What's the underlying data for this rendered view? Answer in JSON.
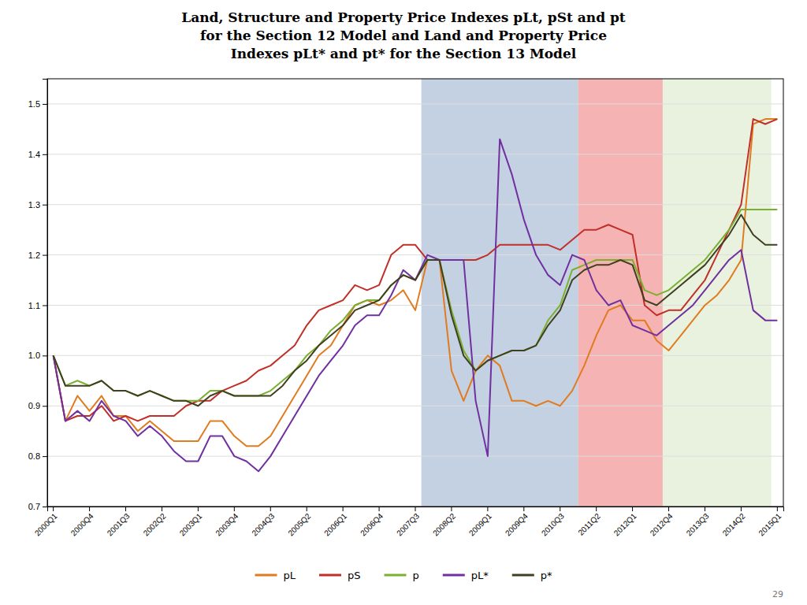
{
  "chart_data": {
    "type": "line",
    "title": "Land, Structure and Property Price Indexes pLt, pSt and pt\nfor the Section 12 Model and Land and Property Price\nIndexes pLt* and pt* for the Section 13 Model",
    "categories": [
      "2000Q1",
      null,
      null,
      "2000Q4",
      null,
      null,
      "2001Q3",
      null,
      null,
      "2002Q2",
      null,
      null,
      "2003Q1",
      null,
      null,
      "2003Q4",
      null,
      null,
      "2004Q3",
      null,
      null,
      "2005Q2",
      null,
      null,
      "2006Q1",
      null,
      null,
      "2006Q4",
      null,
      null,
      "2007Q3",
      null,
      null,
      "2008Q2",
      null,
      null,
      "2009Q1",
      null,
      null,
      "2009Q4",
      null,
      null,
      "2010Q3",
      null,
      null,
      "2011Q2",
      null,
      null,
      "2012Q1",
      null,
      null,
      "2012Q4",
      null,
      null,
      "2013Q3",
      null,
      null,
      "2014Q2",
      null,
      null,
      "2015Q1"
    ],
    "series": [
      {
        "name": "pL",
        "color": "#e07b20",
        "values": [
          1.0,
          0.87,
          0.92,
          0.89,
          0.92,
          0.88,
          0.88,
          0.85,
          0.87,
          0.85,
          0.83,
          0.83,
          0.83,
          0.87,
          0.87,
          0.84,
          0.82,
          0.82,
          0.84,
          0.88,
          0.92,
          0.96,
          1.0,
          1.02,
          1.06,
          1.1,
          1.11,
          1.1,
          1.11,
          1.13,
          1.09,
          1.19,
          1.19,
          0.97,
          0.91,
          0.97,
          1.0,
          0.98,
          0.91,
          0.91,
          0.9,
          0.91,
          0.9,
          0.93,
          0.98,
          1.04,
          1.09,
          1.1,
          1.07,
          1.07,
          1.03,
          1.01,
          1.04,
          1.07,
          1.1,
          1.12,
          1.15,
          1.19,
          1.46,
          1.47,
          1.47
        ]
      },
      {
        "name": "pS",
        "color": "#c03028",
        "values": [
          1.0,
          0.87,
          0.88,
          0.88,
          0.9,
          0.87,
          0.88,
          0.87,
          0.88,
          0.88,
          0.88,
          0.9,
          0.91,
          0.91,
          0.93,
          0.94,
          0.95,
          0.97,
          0.98,
          1.0,
          1.02,
          1.06,
          1.09,
          1.1,
          1.11,
          1.14,
          1.13,
          1.14,
          1.2,
          1.22,
          1.22,
          1.19,
          1.19,
          1.19,
          1.19,
          1.19,
          1.2,
          1.22,
          1.22,
          1.22,
          1.22,
          1.22,
          1.21,
          1.23,
          1.25,
          1.25,
          1.26,
          1.25,
          1.24,
          1.1,
          1.08,
          1.09,
          1.09,
          1.12,
          1.15,
          1.2,
          1.25,
          1.3,
          1.47,
          1.46,
          1.47
        ]
      },
      {
        "name": "p",
        "color": "#7ab030",
        "values": [
          1.0,
          0.94,
          0.95,
          0.94,
          0.95,
          0.93,
          0.93,
          0.92,
          0.93,
          0.92,
          0.91,
          0.91,
          0.91,
          0.93,
          0.93,
          0.92,
          0.92,
          0.92,
          0.93,
          0.95,
          0.97,
          1.0,
          1.02,
          1.05,
          1.07,
          1.1,
          1.11,
          1.11,
          1.14,
          1.16,
          1.15,
          1.19,
          1.19,
          1.09,
          1.01,
          0.97,
          0.99,
          1.0,
          1.01,
          1.01,
          1.02,
          1.07,
          1.1,
          1.17,
          1.18,
          1.19,
          1.19,
          1.19,
          1.19,
          1.13,
          1.12,
          1.13,
          1.15,
          1.17,
          1.19,
          1.22,
          1.25,
          1.29,
          1.29,
          1.29,
          1.29
        ]
      },
      {
        "name": "pL*",
        "color": "#7030a0",
        "values": [
          1.0,
          0.87,
          0.89,
          0.87,
          0.91,
          0.88,
          0.87,
          0.84,
          0.86,
          0.84,
          0.81,
          0.79,
          0.79,
          0.84,
          0.84,
          0.8,
          0.79,
          0.77,
          0.8,
          0.84,
          0.88,
          0.92,
          0.96,
          0.99,
          1.02,
          1.06,
          1.08,
          1.08,
          1.12,
          1.17,
          1.15,
          1.2,
          1.19,
          1.19,
          1.19,
          0.91,
          0.8,
          1.43,
          1.36,
          1.27,
          1.2,
          1.16,
          1.14,
          1.2,
          1.19,
          1.13,
          1.1,
          1.11,
          1.06,
          1.05,
          1.04,
          1.06,
          1.08,
          1.1,
          1.13,
          1.16,
          1.19,
          1.21,
          1.09,
          1.07,
          1.07
        ]
      },
      {
        "name": "p*",
        "color": "#404020",
        "values": [
          1.0,
          0.94,
          0.94,
          0.94,
          0.95,
          0.93,
          0.93,
          0.92,
          0.93,
          0.92,
          0.91,
          0.91,
          0.9,
          0.92,
          0.93,
          0.92,
          0.92,
          0.92,
          0.92,
          0.94,
          0.97,
          0.99,
          1.02,
          1.04,
          1.06,
          1.09,
          1.1,
          1.11,
          1.14,
          1.16,
          1.15,
          1.19,
          1.19,
          1.08,
          1.0,
          0.97,
          0.99,
          1.0,
          1.01,
          1.01,
          1.02,
          1.06,
          1.09,
          1.15,
          1.17,
          1.18,
          1.18,
          1.19,
          1.18,
          1.11,
          1.1,
          1.12,
          1.14,
          1.16,
          1.18,
          1.21,
          1.24,
          1.28,
          1.24,
          1.22,
          1.22
        ]
      }
    ],
    "ylim": [
      0.7,
      1.55
    ],
    "yticks": [
      0.7,
      0.8,
      0.9,
      {
        "value": 1.0,
        "label": "1.0"
      },
      1.1,
      1.2,
      1.3,
      1.4,
      1.5
    ],
    "grid": true,
    "legend": "bottom",
    "regions": [
      {
        "start": 31,
        "end": 44,
        "color": "#6b8cba"
      },
      {
        "start": 44,
        "end": 51,
        "color": "#f08080"
      },
      {
        "start": 51,
        "end": 60,
        "color": "#d4e6c0"
      }
    ],
    "annotations": [
      "29"
    ]
  }
}
